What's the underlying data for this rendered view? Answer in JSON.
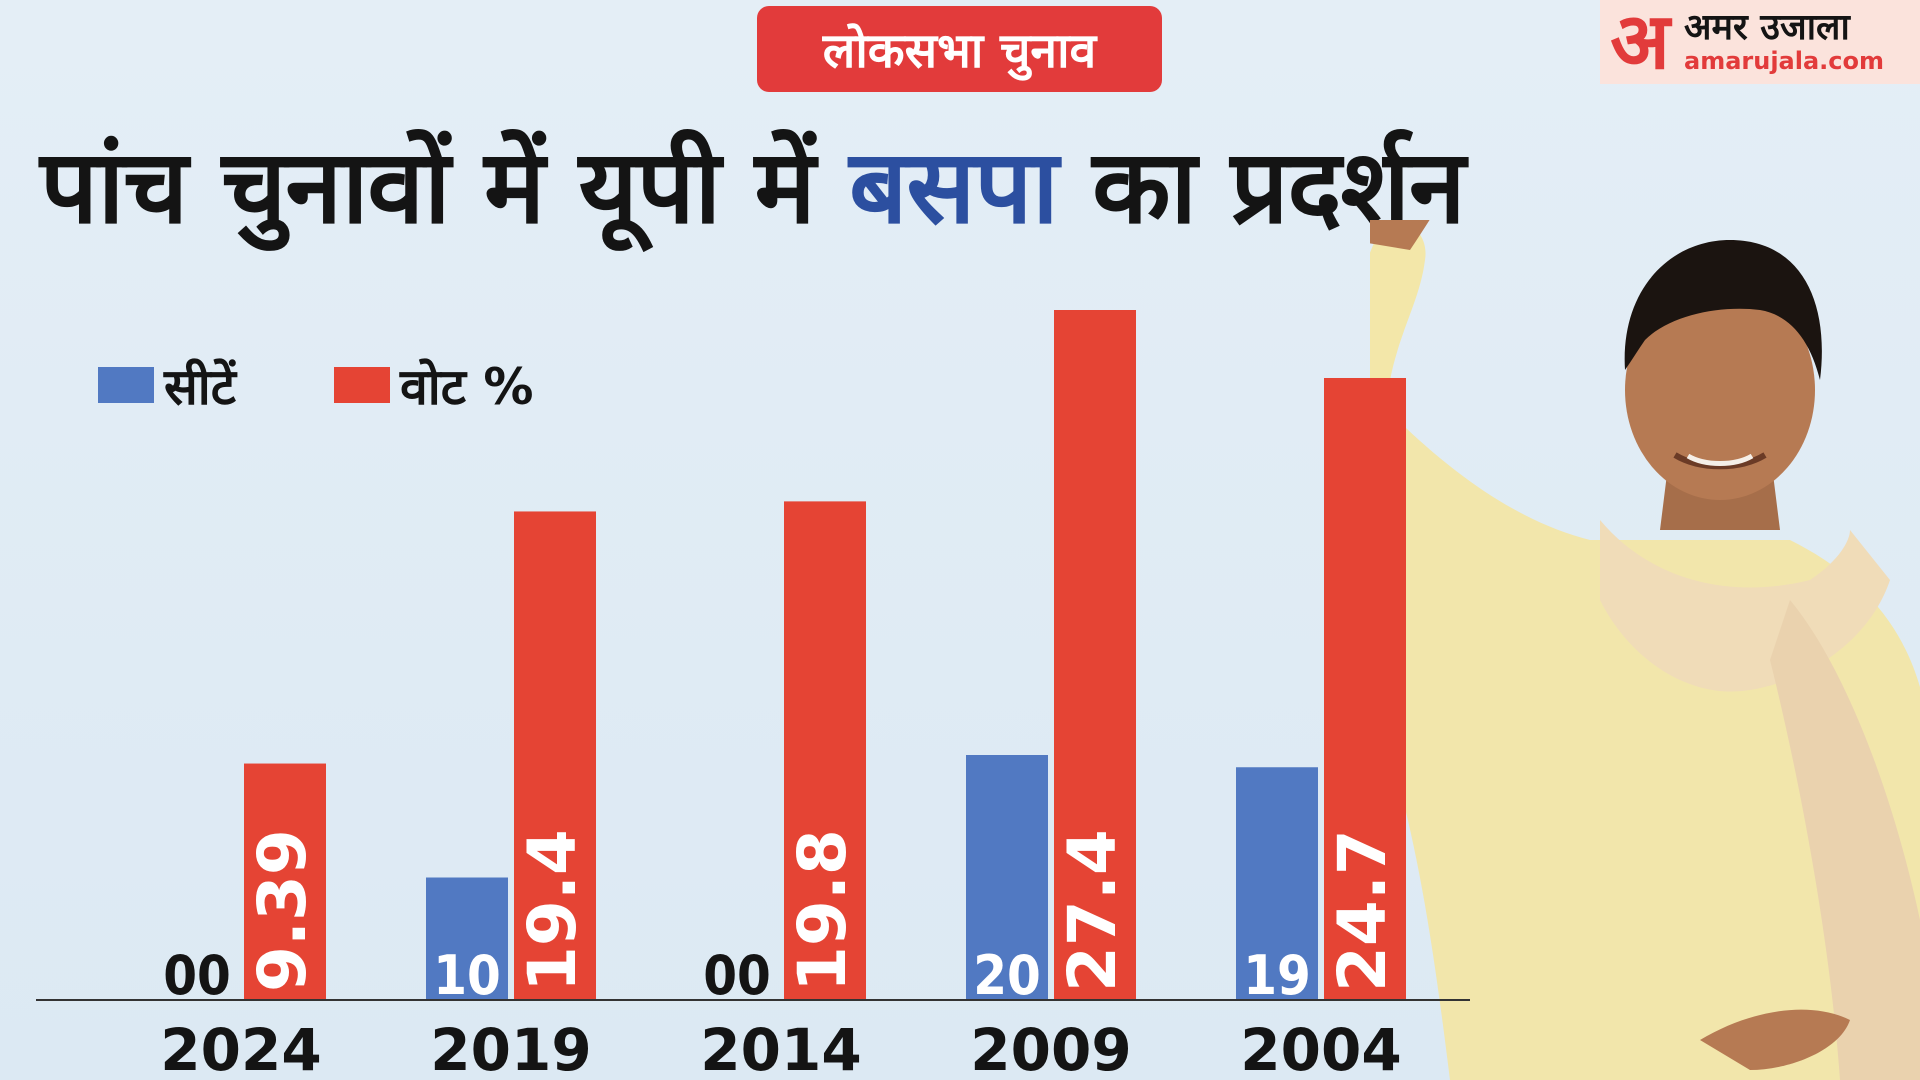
{
  "header": {
    "badge": "लोकसभा चुनाव",
    "title_pre": "पांच चुनावों में यूपी में ",
    "title_highlight": "बसपा",
    "title_post": " का प्रदर्शन"
  },
  "logo": {
    "mark": "अ",
    "name": "अमर उजाला",
    "url": "amarujala.com"
  },
  "colors": {
    "seats": "#5179c2",
    "votes": "#e54434",
    "title_highlight": "#2c4fa0",
    "badge": "#e23b3b"
  },
  "chart_data": {
    "type": "bar",
    "categories": [
      "2024",
      "2019",
      "2014",
      "2009",
      "2004"
    ],
    "series": [
      {
        "name": "सीटें",
        "values": [
          0,
          10,
          0,
          20,
          19
        ],
        "labels": [
          "00",
          "10",
          "00",
          "20",
          "19"
        ]
      },
      {
        "name": "वोट %",
        "values": [
          9.39,
          19.4,
          19.8,
          27.4,
          24.7
        ],
        "labels": [
          "9.39",
          "19.4",
          "19.8",
          "27.4",
          "24.7"
        ]
      }
    ],
    "legend_position": "top-left",
    "grid": false
  }
}
